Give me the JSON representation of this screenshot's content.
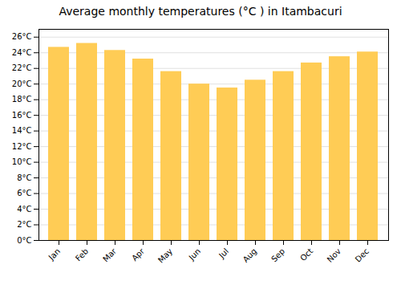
{
  "chart_data": {
    "type": "bar",
    "title": "Average monthly temperatures (°C ) in Itambacuri",
    "categories": [
      "Jan",
      "Feb",
      "Mar",
      "Apr",
      "May",
      "Jun",
      "Jul",
      "Aug",
      "Sep",
      "Oct",
      "Nov",
      "Dec"
    ],
    "values": [
      24.7,
      25.2,
      24.3,
      23.2,
      21.6,
      20.0,
      19.5,
      20.5,
      21.6,
      22.7,
      23.5,
      24.1
    ],
    "color": "#FFCC55",
    "ylim": [
      0,
      27
    ],
    "yticks": [
      {
        "value": 0,
        "label": "0°C"
      },
      {
        "value": 2,
        "label": "2°C"
      },
      {
        "value": 4,
        "label": "4°C"
      },
      {
        "value": 6,
        "label": "6°C"
      },
      {
        "value": 8,
        "label": "8°C"
      },
      {
        "value": 10,
        "label": "10°C"
      },
      {
        "value": 12,
        "label": "12°C"
      },
      {
        "value": 14,
        "label": "14°C"
      },
      {
        "value": 16,
        "label": "16°C"
      },
      {
        "value": 18,
        "label": "18°C"
      },
      {
        "value": 20,
        "label": "20°C"
      },
      {
        "value": 22,
        "label": "22°C"
      },
      {
        "value": 24,
        "label": "24°C"
      },
      {
        "value": 26,
        "label": "26°C"
      }
    ],
    "grid": true
  }
}
